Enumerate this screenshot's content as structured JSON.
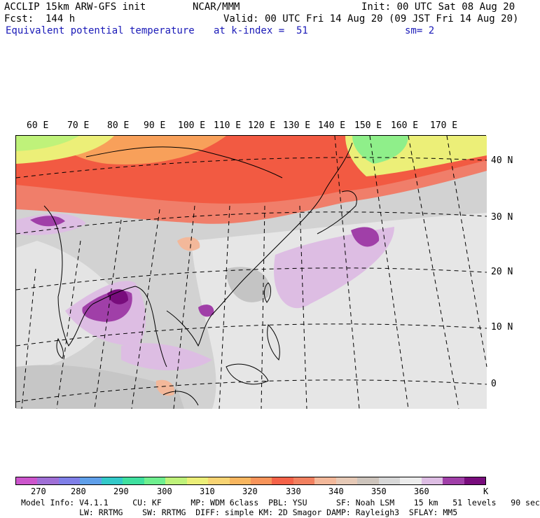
{
  "header": {
    "line1_left": "ACCLIP 15km ARW-GFS init",
    "line1_center": "NCAR/MMM",
    "line1_right": "Init: 00 UTC Sat 08 Aug 20",
    "line2_left": "Fcst:  144 h",
    "line2_right": "Valid: 00 UTC Fri 14 Aug 20 (09 JST Fri 14 Aug 20)",
    "line3_left": "Equivalent potential temperature",
    "line3_center": "at k-index =  51",
    "line3_right": "sm= 2"
  },
  "map": {
    "longitude_labels": [
      "60 E",
      "70 E",
      "80 E",
      "90 E",
      "100 E",
      "110 E",
      "120 E",
      "130 E",
      "140 E",
      "150 E",
      "160 E",
      "170 E"
    ],
    "latitude_labels": [
      "40 N",
      "30 N",
      "20 N",
      "10 N",
      "0"
    ]
  },
  "colorbar": {
    "colors": [
      "#cc55cc",
      "#9f6fd6",
      "#7f7fe8",
      "#5f9fea",
      "#33c9c9",
      "#3fe09f",
      "#6fef8f",
      "#bff27a",
      "#ecef78",
      "#f8d473",
      "#f8b65f",
      "#f8945a",
      "#f56248",
      "#f2805f",
      "#f3b89a",
      "#e6c9b6",
      "#cdc4bc",
      "#d8d8d8",
      "#ececec",
      "#ddbde3",
      "#a03fa8",
      "#780c7c"
    ],
    "tick_labels": [
      "270",
      "280",
      "290",
      "300",
      "310",
      "320",
      "330",
      "340",
      "350",
      "360"
    ],
    "unit": "K"
  },
  "footer": {
    "line1": "Model Info: V4.1.1     CU: KF      MP: WDM 6class  PBL: YSU      SF: Noah LSM    15 km   51 levels   90 sec",
    "line2": "            LW: RRTMG    SW: RRTMG  DIFF: simple KM: 2D Smagor DAMP: Rayleigh3  SFLAY: MM5"
  }
}
